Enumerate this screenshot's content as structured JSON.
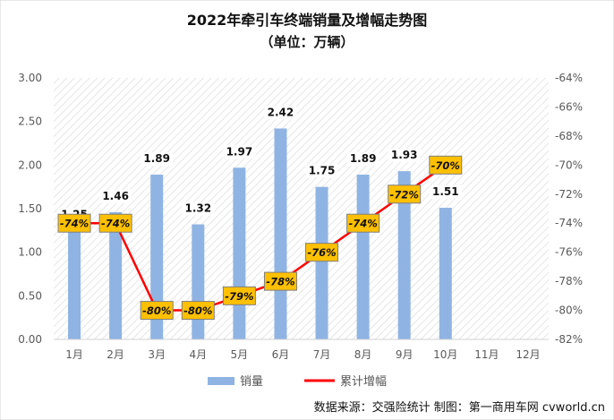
{
  "chart_data": {
    "type": "bar",
    "title": "2022年牵引车终端销量及增幅走势图",
    "subtitle": "（单位：万辆）",
    "categories": [
      "1月",
      "2月",
      "3月",
      "4月",
      "5月",
      "6月",
      "7月",
      "8月",
      "9月",
      "10月",
      "11月",
      "12月"
    ],
    "series": [
      {
        "name": "销量",
        "type": "bar",
        "axis": "left",
        "color": "#8fb4e3",
        "values": [
          1.25,
          1.46,
          1.89,
          1.32,
          1.97,
          2.42,
          1.75,
          1.89,
          1.93,
          1.51,
          null,
          null
        ],
        "labels": [
          "1.25",
          "1.46",
          "1.89",
          "1.32",
          "1.97",
          "2.42",
          "1.75",
          "1.89",
          "1.93",
          "1.51",
          "",
          ""
        ]
      },
      {
        "name": "累计增幅",
        "type": "line",
        "axis": "right",
        "color": "#ff0000",
        "values": [
          -74,
          -74,
          -80,
          -80,
          -79,
          -78,
          -76,
          -74,
          -72,
          -70,
          null,
          null
        ],
        "labels": [
          "-74%",
          "-74%",
          "-80%",
          "-80%",
          "-79%",
          "-78%",
          "-76%",
          "-74%",
          "-72%",
          "-70%",
          "",
          ""
        ]
      }
    ],
    "y_left": {
      "min": 0,
      "max": 3,
      "ticks": [
        "0.00",
        "0.50",
        "1.00",
        "1.50",
        "2.00",
        "2.50",
        "3.00"
      ]
    },
    "y_right": {
      "min": -82,
      "max": -64,
      "ticks": [
        "-82%",
        "-80%",
        "-78%",
        "-76%",
        "-74%",
        "-72%",
        "-70%",
        "-68%",
        "-66%",
        "-64%"
      ]
    },
    "grid": false,
    "legend_position": "bottom",
    "colors": {
      "label_box_fill": "#ffc000",
      "label_box_border": "#7f7f7f",
      "plot_hatch": "#d9d9d9"
    },
    "source_note": "数据来源：交强险统计   制图：第一商用车网 cvworld.cn"
  }
}
